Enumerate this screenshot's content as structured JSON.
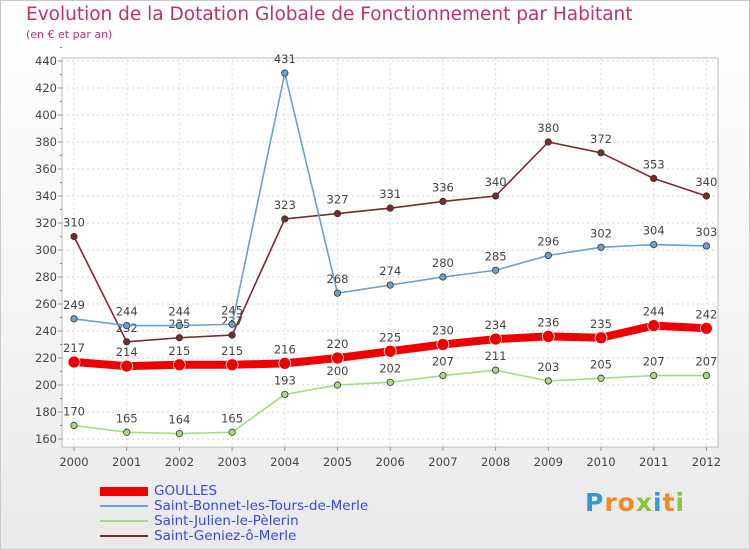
{
  "chart_data": {
    "type": "line",
    "title": "Evolution de la Dotation Globale de Fonctionnement par Habitant",
    "subtitle": "(en € et par an)",
    "xlabel": "",
    "ylabel": "",
    "ylim": [
      160,
      440
    ],
    "ytick_step": 20,
    "grid": true,
    "x": [
      "2000",
      "2001",
      "2002",
      "2003",
      "2004",
      "2005",
      "2006",
      "2007",
      "2008",
      "2009",
      "2010",
      "2011",
      "2012"
    ],
    "series": [
      {
        "name": "GOULLES",
        "color": "#ee0000",
        "values": [
          217,
          214,
          215,
          215,
          216,
          220,
          225,
          230,
          234,
          236,
          235,
          244,
          242
        ]
      },
      {
        "name": "Saint-Bonnet-les-Tours-de-Merle",
        "color": "#6ea0cc",
        "values": [
          249,
          244,
          244,
          245,
          431,
          268,
          274,
          280,
          285,
          296,
          302,
          304,
          303
        ]
      },
      {
        "name": "Saint-Julien-le-Pèlerin",
        "color": "#a6dc7e",
        "values": [
          170,
          165,
          164,
          165,
          193,
          200,
          202,
          207,
          211,
          203,
          205,
          207,
          207
        ]
      },
      {
        "name": "Saint-Geniez-ô-Merle",
        "color": "#7a2a2a",
        "values": [
          310,
          232,
          235,
          237,
          323,
          327,
          331,
          336,
          340,
          380,
          372,
          353,
          340
        ]
      }
    ]
  },
  "branding": {
    "logo_text": "Proxiti",
    "logo_letters": [
      "P",
      "r",
      "o",
      "x",
      "i",
      "t",
      "i"
    ],
    "logo_colors": [
      "#2f9ad9",
      "#f08a24",
      "#f08a24",
      "#8bc53f",
      "#2f9ad9",
      "#f08a24",
      "#8bc53f"
    ]
  }
}
